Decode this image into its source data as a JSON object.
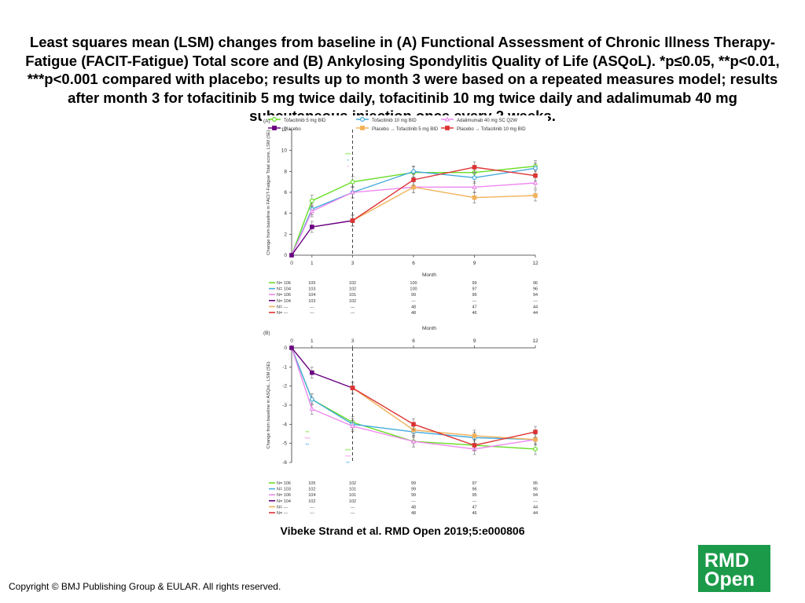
{
  "slide": {
    "title": "Least squares mean (LSM) changes from baseline in (A) Functional Assessment of Chronic Illness Therapy-Fatigue (FACIT-Fatigue) Total score and (B) Ankylosing Spondylitis Quality of Life (ASQoL). *p≤0.05, **p<0.01, ***p<0.001 compared with placebo; results up to month 3 were based on a repeated measures model; results after month 3 for tofacitinib 5 mg twice daily, tofacitinib 10 mg twice daily and adalimumab 40 mg subcutaneous injection once every 2 weeks.",
    "caption": "Vibeke Strand et al. RMD Open 2019;5:e000806",
    "copyright": "Copyright © BMJ Publishing Group & EULAR. All rights reserved.",
    "logo_line1": "RMD",
    "logo_line2": "Open"
  },
  "legend": [
    {
      "label": "Tofacitinib 5 mg BID",
      "color": "#66dd22",
      "marker": "circle"
    },
    {
      "label": "Tofacitinib 10 mg BID",
      "color": "#44aadd",
      "marker": "circle"
    },
    {
      "label": "Adalimumab 40 mg SC Q2W",
      "color": "#ee88ee",
      "marker": "triangle"
    },
    {
      "label": "Placebo",
      "color": "#6a0080",
      "marker": "square"
    },
    {
      "label": "Placebo → Tofacitinib 5 mg BID",
      "color": "#f2b25a",
      "marker": "square"
    },
    {
      "label": "Placebo → Tofacitinib 10 mg BID",
      "color": "#dd3333",
      "marker": "square"
    }
  ],
  "chart_data": [
    {
      "type": "line",
      "panel_label": "(A)",
      "ylabel": "Change from baseline in FACIT-Fatigue Total score, LSM (SE)",
      "xlabel": "Month",
      "x": [
        0,
        1,
        3,
        6,
        9,
        12
      ],
      "xticks": [
        "0",
        "1",
        "3",
        "6",
        "9",
        "12"
      ],
      "ylim": [
        0,
        12
      ],
      "yticks": [
        "0",
        "2",
        "4",
        "6",
        "8",
        "10",
        "12"
      ],
      "series": [
        {
          "name": "Tofacitinib 5 mg BID",
          "color": "#66dd22",
          "marker": "circle",
          "values": [
            0,
            5.2,
            7.0,
            7.9,
            7.9,
            8.5
          ]
        },
        {
          "name": "Tofacitinib 10 mg BID",
          "color": "#44aadd",
          "marker": "circle",
          "values": [
            0,
            4.4,
            6.0,
            8.0,
            7.4,
            8.3
          ]
        },
        {
          "name": "Adalimumab 40 mg SC Q2W",
          "color": "#ee88ee",
          "marker": "triangle",
          "values": [
            0,
            4.2,
            6.0,
            6.5,
            6.5,
            6.9
          ]
        },
        {
          "name": "Placebo",
          "color": "#6a0080",
          "marker": "square",
          "values": [
            0,
            2.7,
            3.3,
            null,
            null,
            null
          ]
        },
        {
          "name": "Placebo → Tofacitinib 5 mg BID",
          "color": "#f2b25a",
          "marker": "square",
          "values": [
            null,
            null,
            3.3,
            6.5,
            5.5,
            5.7
          ]
        },
        {
          "name": "Placebo → Tofacitinib 10 mg BID",
          "color": "#dd3333",
          "marker": "square",
          "values": [
            null,
            null,
            3.3,
            7.2,
            8.4,
            7.6
          ]
        }
      ],
      "annotations": [
        {
          "x": 3,
          "text": "***",
          "color": "#66dd22"
        },
        {
          "x": 3,
          "text": "*",
          "color": "#44aadd"
        },
        {
          "x": 3,
          "text": "*",
          "color": "#ee88ee"
        }
      ],
      "n_table": [
        {
          "color": "#66dd22",
          "cells": [
            "N= 106",
            "105",
            "102",
            "100",
            "99",
            "96"
          ]
        },
        {
          "color": "#44aadd",
          "cells": [
            "N= 104",
            "103",
            "102",
            "100",
            "97",
            "96"
          ]
        },
        {
          "color": "#ee88ee",
          "cells": [
            "N= 106",
            "104",
            "101",
            "99",
            "96",
            "94"
          ]
        },
        {
          "color": "#6a0080",
          "cells": [
            "N= 104",
            "103",
            "102",
            "---",
            "---",
            "---"
          ]
        },
        {
          "color": "#f2b25a",
          "cells": [
            "N=   ---",
            "---",
            "---",
            "48",
            "47",
            "44"
          ]
        },
        {
          "color": "#dd3333",
          "cells": [
            "N=   ---",
            "---",
            "---",
            "48",
            "46",
            "44"
          ]
        }
      ]
    },
    {
      "type": "line",
      "panel_label": "(B)",
      "ylabel": "Change from baseline in ASQoL, LSM (SE)",
      "xlabel": "Month",
      "x": [
        0,
        1,
        3,
        6,
        9,
        12
      ],
      "xticks": [
        "0",
        "1",
        "3",
        "6",
        "9",
        "12"
      ],
      "ylim": [
        -6,
        0
      ],
      "yticks": [
        "0",
        "-1",
        "-2",
        "-3",
        "-4",
        "-5",
        "-6"
      ],
      "series": [
        {
          "name": "Tofacitinib 5 mg BID",
          "color": "#66dd22",
          "marker": "circle",
          "values": [
            0,
            -2.7,
            -3.9,
            -4.9,
            -5.1,
            -5.3
          ]
        },
        {
          "name": "Tofacitinib 10 mg BID",
          "color": "#44aadd",
          "marker": "circle",
          "values": [
            0,
            -2.7,
            -4.0,
            -4.4,
            -4.7,
            -4.8
          ]
        },
        {
          "name": "Adalimumab 40 mg SC Q2W",
          "color": "#ee88ee",
          "marker": "triangle",
          "values": [
            0,
            -3.2,
            -4.1,
            -4.9,
            -5.3,
            -4.8
          ]
        },
        {
          "name": "Placebo",
          "color": "#6a0080",
          "marker": "square",
          "values": [
            0,
            -1.3,
            -2.1,
            null,
            null,
            null
          ]
        },
        {
          "name": "Placebo → Tofacitinib 5 mg BID",
          "color": "#f2b25a",
          "marker": "square",
          "values": [
            null,
            null,
            -2.1,
            -4.3,
            -4.6,
            -4.8
          ]
        },
        {
          "name": "Placebo → Tofacitinib 10 mg BID",
          "color": "#dd3333",
          "marker": "square",
          "values": [
            null,
            null,
            -2.1,
            -4.0,
            -5.1,
            -4.4
          ]
        }
      ],
      "annotations": [
        {
          "x": 1,
          "text": "**",
          "color": "#66dd22"
        },
        {
          "x": 1,
          "text": "***",
          "color": "#ee88ee"
        },
        {
          "x": 1,
          "text": "**",
          "color": "#44aadd"
        },
        {
          "x": 3,
          "text": "***",
          "color": "#66dd22"
        },
        {
          "x": 3,
          "text": "***",
          "color": "#ee88ee"
        },
        {
          "x": 3,
          "text": "**",
          "color": "#44aadd"
        }
      ],
      "n_table": [
        {
          "color": "#66dd22",
          "cells": [
            "N= 106",
            "105",
            "102",
            "99",
            "97",
            "95"
          ]
        },
        {
          "color": "#44aadd",
          "cells": [
            "N= 103",
            "102",
            "101",
            "99",
            "96",
            "95"
          ]
        },
        {
          "color": "#ee88ee",
          "cells": [
            "N= 106",
            "104",
            "101",
            "99",
            "95",
            "94"
          ]
        },
        {
          "color": "#6a0080",
          "cells": [
            "N= 104",
            "102",
            "102",
            "---",
            "---",
            "---"
          ]
        },
        {
          "color": "#f2b25a",
          "cells": [
            "N=   ---",
            "---",
            "---",
            "48",
            "47",
            "44"
          ]
        },
        {
          "color": "#dd3333",
          "cells": [
            "N=   ---",
            "---",
            "---",
            "48",
            "46",
            "44"
          ]
        }
      ]
    }
  ]
}
